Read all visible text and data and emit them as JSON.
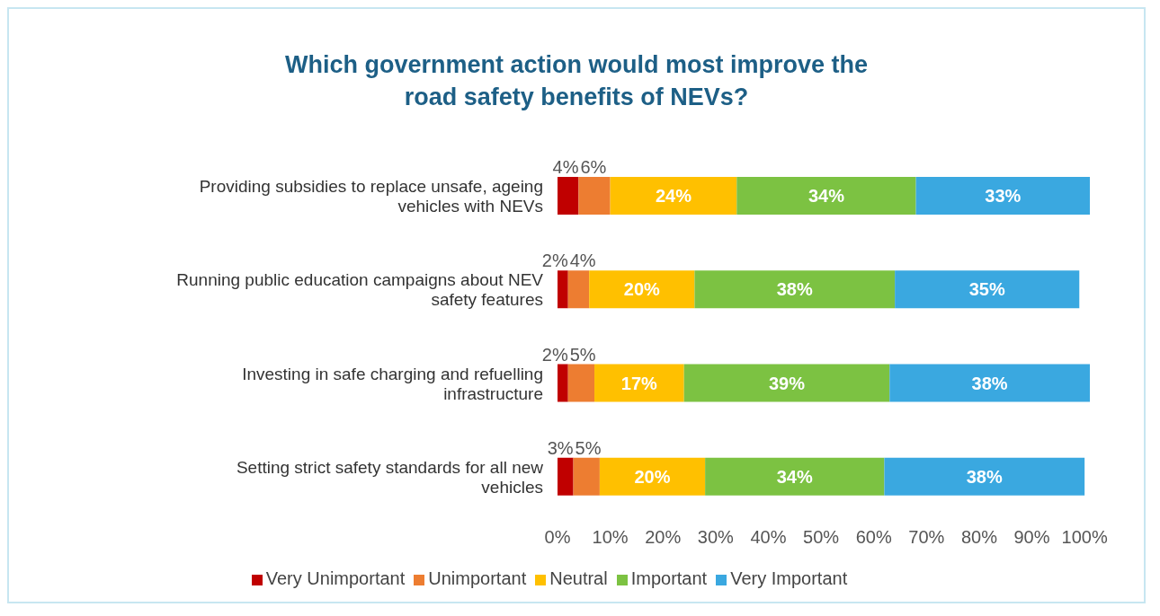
{
  "chart_data": {
    "type": "bar",
    "orientation": "horizontal",
    "stacked": true,
    "title": "Which government action would most improve the road safety benefits of NEVs?",
    "categories": [
      "Providing subsidies to replace unsafe, ageing vehicles with NEVs",
      "Running public education campaigns about NEV safety features",
      "Investing in safe charging and refuelling infrastructure",
      "Setting strict safety standards for all new vehicles"
    ],
    "series": [
      {
        "name": "Very Unimportant",
        "color": "#c00000",
        "values": [
          4,
          2,
          2,
          3
        ],
        "value_labels": [
          "4%",
          "2%",
          "2%",
          "3%"
        ]
      },
      {
        "name": "Unimportant",
        "color": "#ed7d31",
        "values": [
          6,
          4,
          5,
          5
        ],
        "value_labels": [
          "6%",
          "4%",
          "5%",
          "5%"
        ]
      },
      {
        "name": "Neutral",
        "color": "#ffc000",
        "values": [
          24,
          20,
          17,
          20
        ],
        "value_labels": [
          "24%",
          "20%",
          "17%",
          "20%"
        ]
      },
      {
        "name": "Important",
        "color": "#7cc242",
        "values": [
          34,
          38,
          39,
          34
        ],
        "value_labels": [
          "34%",
          "38%",
          "39%",
          "34%"
        ]
      },
      {
        "name": "Very Important",
        "color": "#3aa8e0",
        "values": [
          33,
          35,
          38,
          38
        ],
        "value_labels": [
          "33%",
          "35%",
          "38%",
          "38%"
        ]
      }
    ],
    "xlim": [
      0,
      101
    ],
    "xticks": [
      {
        "value": 0,
        "label": "0%"
      },
      {
        "value": 10,
        "label": "10%"
      },
      {
        "value": 20,
        "label": "20%"
      },
      {
        "value": 30,
        "label": "30%"
      },
      {
        "value": 40,
        "label": "40%"
      },
      {
        "value": 50,
        "label": "50%"
      },
      {
        "value": 60,
        "label": "60%"
      },
      {
        "value": 70,
        "label": "70%"
      },
      {
        "value": 80,
        "label": "80%"
      },
      {
        "value": 90,
        "label": "90%"
      },
      {
        "value": 100,
        "label": "100%"
      }
    ],
    "legend": "bottom"
  }
}
